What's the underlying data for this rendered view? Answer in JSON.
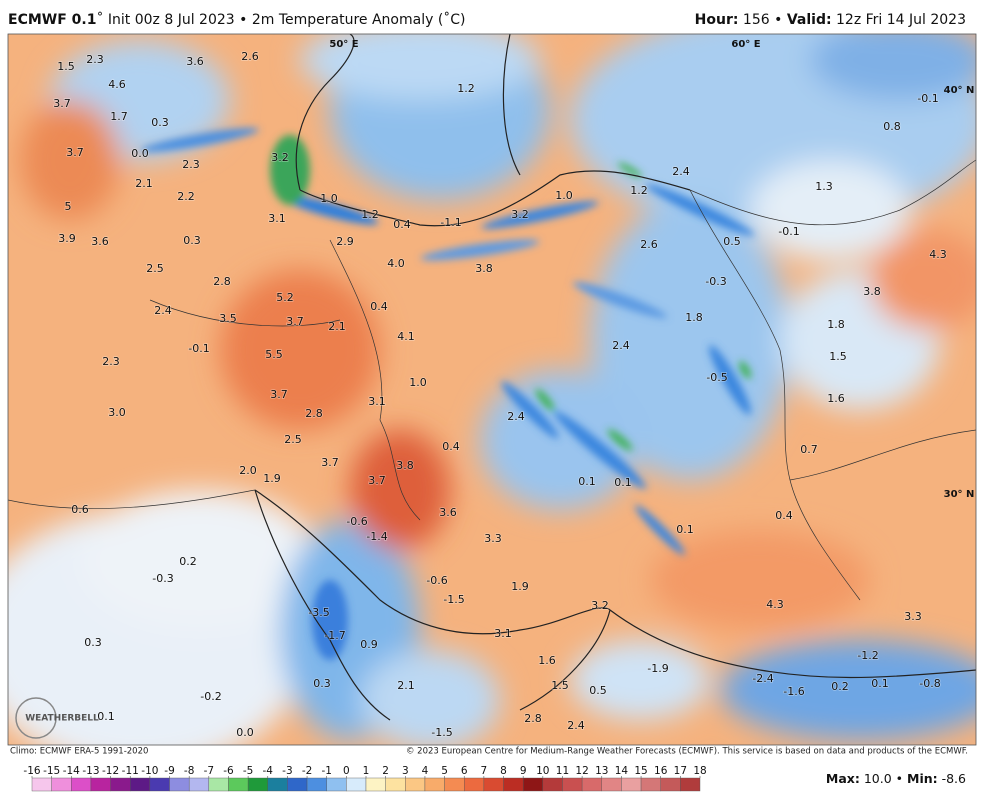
{
  "header": {
    "title_bold": "ECMWF 0.1",
    "title_rest": "˚ Init 00z 8 Jul 2023 • 2m Temperature Anomaly (˚C)",
    "hour_label": "Hour:",
    "hour_value": " 156 • ",
    "valid_label": "Valid:",
    "valid_value": " 12z Fri 14 Jul 2023"
  },
  "map": {
    "coordinate_labels": [
      "50° E",
      "60° E",
      "40° N",
      "30° N"
    ],
    "labels": [
      "1.5",
      "2.3",
      "3.6",
      "2.6",
      "4.6",
      "3.7",
      "1.7",
      "0.3",
      "3.7",
      "0.0",
      "3.2",
      "2.3",
      "2.1",
      "2.2",
      "1.0",
      "5",
      "1.2",
      "3.1",
      "0.4",
      "-1.1",
      "3.2",
      "1.0",
      "1.2",
      "2.4",
      "3.9",
      "3.6",
      "0.3",
      "2.9",
      "2.6",
      "0.5",
      "-0.1",
      "4.0",
      "3.8",
      "2.5",
      "2.8",
      "-0.3",
      "5.2",
      "3.5",
      "3.7",
      "2.1",
      "0.4",
      "1.8",
      "3.8",
      "4.3",
      "1.3",
      "0.8",
      "-0.1",
      "1.2",
      "1.8",
      "2.4",
      "-0.1",
      "4.1",
      "2.4",
      "5.5",
      "2.3",
      "1.5",
      "1.0",
      "-0.5",
      "3.7",
      "1.6",
      "3.0",
      "2.8",
      "3.1",
      "2.4",
      "2.5",
      "0.4",
      "0.7",
      "3.7",
      "3.8",
      "2.0",
      "1.9",
      "3.7",
      "0.1",
      "0.1",
      "0.6",
      "3.6",
      "-0.6",
      "0.4",
      "0.1",
      "-1.4",
      "3.3",
      "0.2",
      "-0.3",
      "-0.6",
      "1.9",
      "-1.5",
      "4.3",
      "3.2",
      "-3.5",
      "3.3",
      "0.3",
      "-1.7",
      "0.9",
      "3.1",
      "1.6",
      "-1.9",
      "-1.2",
      "0.3",
      "2.1",
      "1.5",
      "0.5",
      "-2.4",
      "-1.6",
      "0.2",
      "0.1",
      "-0.8",
      "-0.2",
      "0.1",
      "2.8",
      "2.4",
      "0.0",
      "-1.5"
    ],
    "logo": "WEATHERBELL"
  },
  "footer": {
    "climo": "Climo: ECMWF ERA-5 1991-2020",
    "copyright": "© 2023 European Centre for Medium-Range Weather Forecasts (ECMWF). This service is based on data and products of the ECMWF.",
    "max_label": "Max:",
    "max_value": " 10.0 • ",
    "min_label": "Min:",
    "min_value": " -8.6"
  },
  "colorbar": {
    "ticks": [
      -16,
      -15,
      -14,
      -13,
      -12,
      -11,
      -10,
      -9,
      -8,
      -7,
      -6,
      -5,
      -4,
      -3,
      -2,
      -1,
      0,
      1,
      2,
      3,
      4,
      5,
      6,
      7,
      8,
      9,
      10,
      11,
      12,
      13,
      14,
      15,
      16,
      17,
      18
    ],
    "colors": [
      "#f6c6ec",
      "#ef8fdc",
      "#dc4fc8",
      "#b8249f",
      "#8a1a8c",
      "#5d1a86",
      "#4a3ab0",
      "#8d8de0",
      "#b3b7ef",
      "#a9e7a5",
      "#5cc95c",
      "#1f9a3a",
      "#1b7f9e",
      "#2f67c9",
      "#4d8fe0",
      "#8fc0f0",
      "#d7ebfb",
      "#fdf3c4",
      "#fde2a0",
      "#fbc784",
      "#f8ab6a",
      "#f48b52",
      "#ec6a3f",
      "#d94b31",
      "#bb2d23",
      "#8e1616",
      "#b43a3a",
      "#c95050",
      "#d86a6a",
      "#e18585",
      "#e9a0a0",
      "#d47777",
      "#c45a5a",
      "#b03c3c"
    ]
  }
}
